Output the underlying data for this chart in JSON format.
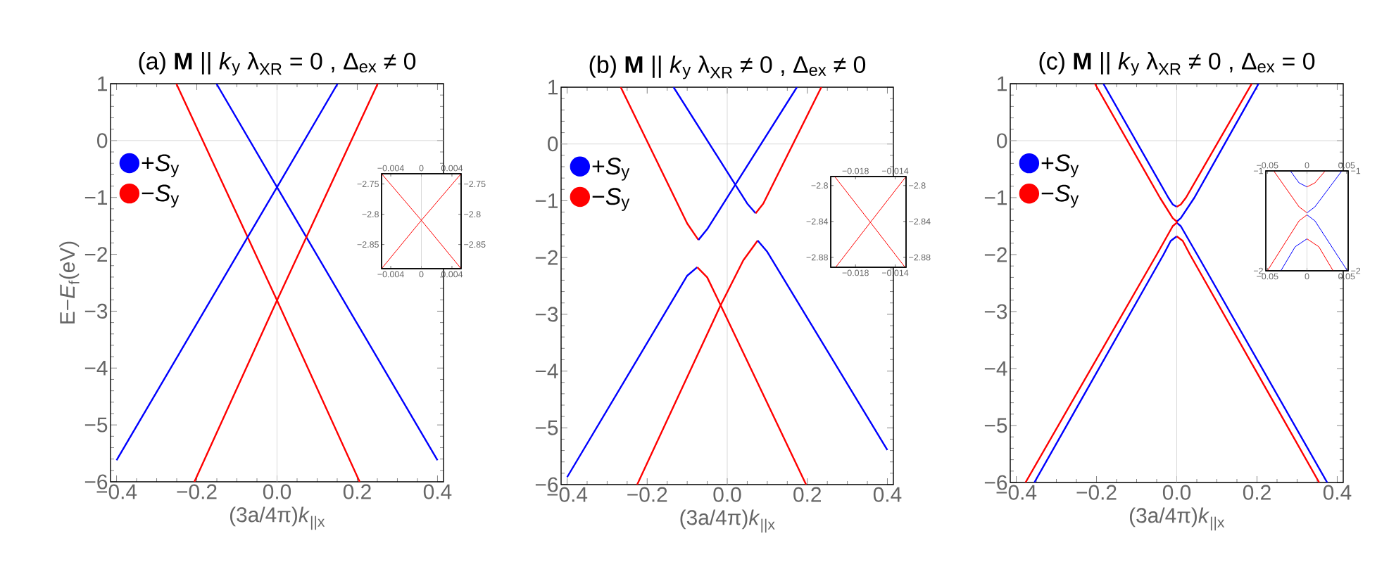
{
  "chart_data": [
    {
      "type": "line",
      "title": "(a) **M** || *k*$_{y}$  λ$_{XR}$ = 0 , Δ$_{ex}$ ≠ 0",
      "xlabel": "(3a/4π)*k*$_{||x}$",
      "ylabel": "E−*E*$_{f}$(eV)",
      "legend": "top left",
      "xlim": [
        -0.415,
        0.415
      ],
      "ylim": [
        -6,
        1
      ],
      "xticks": [
        {
          "value": -0.4,
          "label": "−0.4"
        },
        {
          "value": -0.2,
          "label": "−0.2"
        },
        {
          "value": 0,
          "label": "0.0"
        },
        0.2,
        0.4
      ],
      "yticks": [
        {
          "value": -6,
          "label": "−6"
        },
        {
          "value": -5,
          "label": "−5"
        },
        {
          "value": -4,
          "label": "−4"
        },
        {
          "value": -3,
          "label": "−3"
        },
        {
          "value": -2,
          "label": "−2"
        },
        {
          "value": -1,
          "label": "−1"
        },
        0,
        1
      ],
      "ref_lines": [
        {
          "axis": "x",
          "value": 0,
          "color": "#c8c8c8"
        },
        {
          "axis": "y",
          "value": 0,
          "color": "#c8c8c8"
        }
      ],
      "series": [
        {
          "name": "+*S*$_{y}$",
          "color": "#0000ff",
          "x": [
            -0.151,
            0,
            0.4
          ],
          "values": [
            1,
            -0.82,
            -5.62
          ]
        },
        {
          "name": "−*S*$_{y}$",
          "color": "#ff0000",
          "x": [
            -0.251,
            0,
            0.206
          ],
          "values": [
            1,
            -2.81,
            -6
          ]
        },
        {
          "color": "#0000ff",
          "x": [
            -0.4,
            0,
            0.151
          ],
          "values": [
            -5.62,
            -0.82,
            1
          ]
        },
        {
          "color": "#ff0000",
          "x": [
            -0.206,
            0,
            0.251
          ],
          "values": [
            -6,
            -2.81,
            1
          ]
        }
      ]
    },
    {
      "type": "line",
      "title": "(b) **M** || *k*$_{y}$  λ$_{XR}$ ≠ 0 , Δ$_{ex}$ ≠ 0",
      "xlabel": "(3a/4π)*k*$_{||x}$",
      "legend": "top left",
      "xlim": [
        -0.415,
        0.415
      ],
      "ylim": [
        -6,
        1
      ],
      "xticks": [
        {
          "value": -0.4,
          "label": "−0.4"
        },
        {
          "value": -0.2,
          "label": "−0.2"
        },
        {
          "value": 0,
          "label": "0.0"
        },
        0.2,
        0.4
      ],
      "yticks": [
        {
          "value": -6,
          "label": "−6"
        },
        {
          "value": -5,
          "label": "−5"
        },
        {
          "value": -4,
          "label": "−4"
        },
        {
          "value": -3,
          "label": "−3"
        },
        {
          "value": -2,
          "label": "−2"
        },
        {
          "value": -1,
          "label": "−1"
        },
        0,
        1
      ],
      "ref_lines": [
        {
          "axis": "x",
          "value": 0,
          "color": "#c8c8c8"
        },
        {
          "axis": "y",
          "value": 0,
          "color": "#c8c8c8"
        }
      ],
      "series": [
        {
          "name": "+*S*$_{y}$",
          "color": "#0000ff",
          "x": [
            -0.134,
            0.05,
            0.071
          ],
          "values": [
            1,
            -1.05,
            -1.22
          ]
        },
        {
          "name": "−*S*$_{y}$",
          "color": "#ff0000",
          "x": [
            0.071,
            0.09,
            0.235
          ],
          "values": [
            -1.22,
            -1.05,
            1
          ]
        },
        {
          "color": "#ff0000",
          "x": [
            -0.266,
            -0.1,
            -0.072
          ],
          "values": [
            1,
            -1.4,
            -1.69
          ]
        },
        {
          "color": "#0000ff",
          "x": [
            -0.072,
            -0.05,
            0.174
          ],
          "values": [
            -1.69,
            -1.5,
            1
          ]
        },
        {
          "color": "#0000ff",
          "x": [
            -0.4,
            -0.1,
            -0.075
          ],
          "values": [
            -5.87,
            -2.32,
            -2.17
          ]
        },
        {
          "color": "#ff0000",
          "x": [
            -0.075,
            -0.05,
            -0.0165,
            0.197
          ],
          "values": [
            -2.17,
            -2.35,
            -2.84,
            -6
          ]
        },
        {
          "color": "#ff0000",
          "x": [
            -0.225,
            -0.0165,
            0.04,
            0.076
          ],
          "values": [
            -6,
            -2.84,
            -2.05,
            -1.7
          ]
        },
        {
          "color": "#0000ff",
          "x": [
            0.076,
            0.1,
            0.4
          ],
          "values": [
            -1.7,
            -1.9,
            -5.39
          ]
        }
      ]
    },
    {
      "type": "line",
      "title": "(c) **M** || *k*$_{y}$ λ$_{XR}$ ≠ 0 , Δ$_{ex}$ = 0",
      "xlabel": "(3a/4π)*k*$_{||x}$",
      "legend": "top left",
      "xlim": [
        -0.415,
        0.415
      ],
      "ylim": [
        -6,
        1
      ],
      "xticks": [
        {
          "value": -0.4,
          "label": "−0.4"
        },
        {
          "value": -0.2,
          "label": "−0.2"
        },
        {
          "value": 0,
          "label": "0.0"
        },
        0.2,
        0.4
      ],
      "yticks": [
        {
          "value": -6,
          "label": "−6"
        },
        {
          "value": -5,
          "label": "−5"
        },
        {
          "value": -4,
          "label": "−4"
        },
        {
          "value": -3,
          "label": "−3"
        },
        {
          "value": -2,
          "label": "−2"
        },
        {
          "value": -1,
          "label": "−1"
        },
        0,
        1
      ],
      "ref_lines": [
        {
          "axis": "x",
          "value": 0,
          "color": "#c8c8c8"
        },
        {
          "axis": "y",
          "value": 0,
          "color": "#c8c8c8"
        }
      ],
      "series": [
        {
          "name": "+*S*$_{y}$",
          "color": "#0000ff",
          "x": [
            0.204,
            0.044,
            0.01,
            0,
            0,
            0.01,
            0.051,
            0.375
          ],
          "values": [
            1,
            -1.0,
            -1.36,
            -1.42,
            -1.44,
            -1.5,
            -2.0,
            -6
          ]
        },
        {
          "name": "−*S*$_{y}$",
          "color": "#ff0000",
          "x": [
            -0.377,
            -0.05,
            -0.01,
            0,
            0,
            -0.01,
            -0.042,
            -0.204
          ],
          "values": [
            -6,
            -2.0,
            -1.5,
            -1.44,
            -1.42,
            -1.36,
            -1.0,
            1
          ]
        },
        {
          "color": "#0000ff",
          "x": [
            -0.183,
            -0.021,
            -0.01,
            0
          ],
          "values": [
            1,
            -1.0,
            -1.12,
            -1.16
          ]
        },
        {
          "color": "#ff0000",
          "x": [
            0,
            0.01,
            0.023,
            0.187
          ],
          "values": [
            -1.16,
            -1.12,
            -1.0,
            1
          ]
        },
        {
          "color": "#0000ff",
          "x": [
            -0.355,
            -0.033,
            -0.015,
            0
          ],
          "values": [
            -6,
            -2.0,
            -1.76,
            -1.68
          ]
        },
        {
          "color": "#ff0000",
          "x": [
            0,
            0.015,
            0.033,
            0.355
          ],
          "values": [
            -1.68,
            -1.76,
            -2.0,
            -6
          ]
        }
      ]
    },
    {
      "type": "line",
      "xlim": [
        -0.0052,
        0.0052
      ],
      "ylim": [
        -2.89,
        -2.733
      ],
      "x2lim": [
        -0.0052,
        0.0052
      ],
      "y2lim": [
        -2.89,
        -2.733
      ],
      "xticks": [
        {
          "value": -0.004,
          "label": "−0.004"
        },
        0,
        0.004
      ],
      "x2ticks": [
        {
          "value": -0.004,
          "label": "−0.004"
        },
        0,
        0.004
      ],
      "yticks": [
        {
          "value": -2.85,
          "label": "−2.85"
        },
        {
          "value": -2.8,
          "label": "−2.8"
        },
        {
          "value": -2.75,
          "label": "−2.75"
        }
      ],
      "y2ticks": [
        {
          "value": -2.85,
          "label": "−2.85"
        },
        {
          "value": -2.8,
          "label": "−2.8"
        },
        {
          "value": -2.75,
          "label": "−2.75"
        }
      ],
      "ref_lines": [
        {
          "axis": "x",
          "value": 0,
          "color": "#c8c8c8"
        }
      ],
      "series": [
        {
          "color": "#ff0000",
          "x": [
            -0.0052,
            0,
            0.0052
          ],
          "values": [
            -2.733,
            -2.81,
            -2.89
          ]
        },
        {
          "color": "#ff0000",
          "x": [
            -0.0052,
            0,
            0.0052
          ],
          "values": [
            -2.89,
            -2.81,
            -2.733
          ]
        }
      ]
    },
    {
      "type": "line",
      "xlim": [
        -0.0205,
        -0.0129
      ],
      "ylim": [
        -2.891,
        -2.79
      ],
      "x2lim": [
        -0.0205,
        -0.0129
      ],
      "y2lim": [
        -2.891,
        -2.79
      ],
      "xticks": [
        {
          "value": -0.018,
          "label": "−0.018"
        },
        {
          "value": -0.014,
          "label": "−0.014"
        }
      ],
      "x2ticks": [
        {
          "value": -0.018,
          "label": "−0.018"
        },
        {
          "value": -0.014,
          "label": "−0.014"
        }
      ],
      "yticks": [
        {
          "value": -2.88,
          "label": "−2.88"
        },
        {
          "value": -2.84,
          "label": "−2.84"
        },
        {
          "value": -2.8,
          "label": "−2.8"
        }
      ],
      "y2ticks": [
        {
          "value": -2.88,
          "label": "−2.88"
        },
        {
          "value": -2.84,
          "label": "−2.84"
        },
        {
          "value": -2.8,
          "label": "−2.8"
        }
      ],
      "series": [
        {
          "color": "#ff0000",
          "x": [
            -0.0201,
            -0.0165,
            -0.013
          ],
          "values": [
            -2.79,
            -2.841,
            -2.891
          ]
        },
        {
          "color": "#ff0000",
          "x": [
            -0.02,
            -0.0165,
            -0.0129
          ],
          "values": [
            -2.891,
            -2.841,
            -2.79
          ]
        }
      ]
    },
    {
      "type": "line",
      "xlim": [
        -0.052,
        0.052
      ],
      "ylim": [
        -2,
        -1
      ],
      "x2lim": [
        -0.052,
        0.052
      ],
      "y2lim": [
        -2,
        -1
      ],
      "xticks": [
        {
          "value": -0.05,
          "label": "−0.05"
        },
        0,
        0.05
      ],
      "x2ticks": [
        {
          "value": -0.05,
          "label": "−0.05"
        },
        0,
        0.05
      ],
      "yticks": [
        {
          "value": -2,
          "label": "−2"
        },
        {
          "value": -1,
          "label": "−1"
        }
      ],
      "y2ticks": [
        {
          "value": -2,
          "label": "−2"
        },
        {
          "value": -1,
          "label": "−1"
        }
      ],
      "ref_lines": [
        {
          "axis": "x",
          "value": 0,
          "color": "#c8c8c8"
        }
      ],
      "series": [
        {
          "color": "#ff0000",
          "x": [
            -0.042,
            -0.01,
            0
          ],
          "values": [
            -1.0,
            -1.36,
            -1.42
          ]
        },
        {
          "color": "#ff0000",
          "x": [
            -0.05,
            -0.01,
            0
          ],
          "values": [
            -2.0,
            -1.5,
            -1.44
          ]
        },
        {
          "color": "#0000ff",
          "x": [
            0,
            0.01,
            0.044
          ],
          "values": [
            -1.42,
            -1.36,
            -1.0
          ]
        },
        {
          "color": "#0000ff",
          "x": [
            0,
            0.01,
            0.051
          ],
          "values": [
            -1.44,
            -1.5,
            -2.0
          ]
        },
        {
          "color": "#0000ff",
          "x": [
            -0.021,
            -0.01,
            0
          ],
          "values": [
            -1.0,
            -1.12,
            -1.16
          ]
        },
        {
          "color": "#ff0000",
          "x": [
            0,
            0.01,
            0.023
          ],
          "values": [
            -1.16,
            -1.12,
            -1.0
          ]
        },
        {
          "color": "#0000ff",
          "x": [
            -0.033,
            -0.015,
            0
          ],
          "values": [
            -2.0,
            -1.76,
            -1.68
          ]
        },
        {
          "color": "#ff0000",
          "x": [
            0,
            0.015,
            0.033
          ],
          "values": [
            -1.68,
            -1.76,
            -2.0
          ]
        }
      ]
    }
  ]
}
